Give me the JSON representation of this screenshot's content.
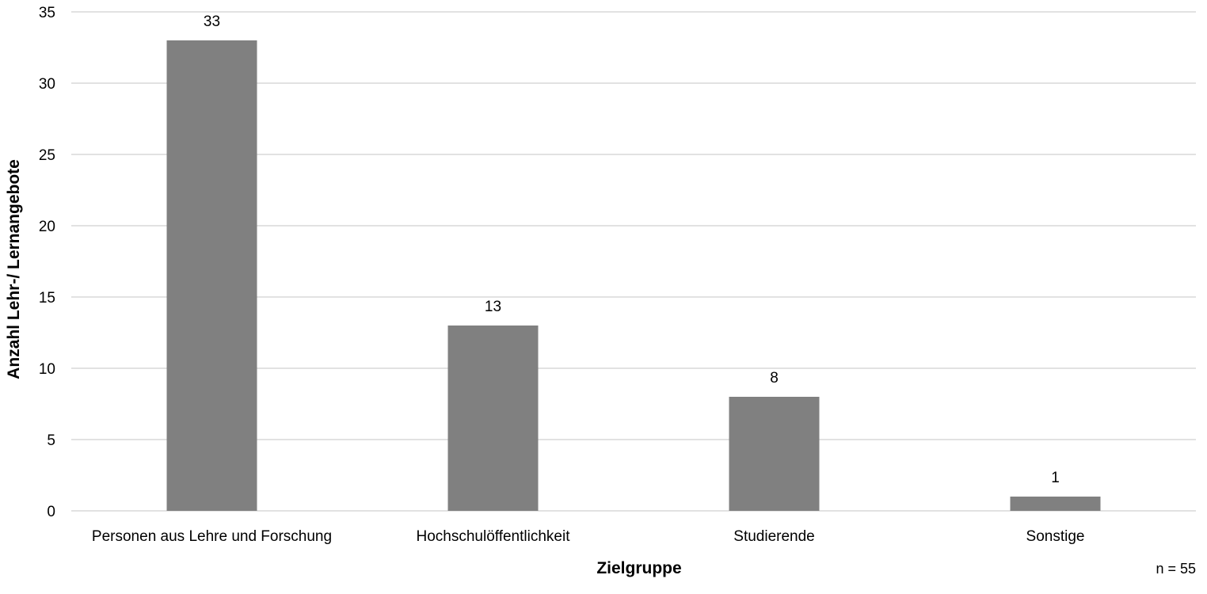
{
  "chart_data": {
    "type": "bar",
    "title": "",
    "xlabel": "Zielgruppe",
    "ylabel": "Anzahl Lehr-/ Lernangebote",
    "categories": [
      "Personen aus Lehre und Forschung",
      "Hochschulöffentlichkeit",
      "Studierende",
      "Sonstige"
    ],
    "values": [
      33,
      13,
      8,
      1
    ],
    "data_labels": [
      "33",
      "13",
      "8",
      "1"
    ],
    "ylim": [
      0,
      35
    ],
    "yticks": [
      0,
      5,
      10,
      15,
      20,
      25,
      30,
      35
    ],
    "grid": true,
    "legend": "none",
    "annotation": "n = 55",
    "colors": {
      "bar": "#808080",
      "grid": "#d9d9d9",
      "text": "#000000"
    }
  }
}
